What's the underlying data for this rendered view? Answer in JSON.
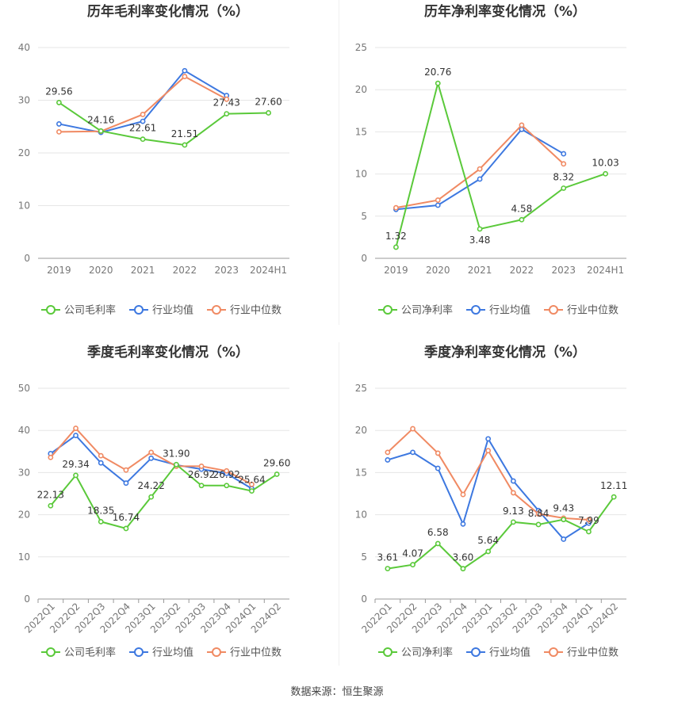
{
  "source": "数据来源：恒生聚源",
  "colors": {
    "company": "#5ac93a",
    "industry_avg": "#3d78e0",
    "industry_median": "#f08a63"
  },
  "chart_data": [
    {
      "type": "line",
      "title": "历年毛利率变化情况（%）",
      "categories": [
        "2019",
        "2020",
        "2021",
        "2022",
        "2023",
        "2024H1"
      ],
      "ylim": [
        0,
        40
      ],
      "yticks": [
        0,
        10,
        20,
        30,
        40
      ],
      "xrotate": false,
      "grid": true,
      "legend": "bottom",
      "series": [
        {
          "name": "公司毛利率",
          "key": "company",
          "values": [
            29.56,
            24.16,
            22.61,
            21.51,
            27.43,
            27.6
          ],
          "labels": [
            "29.56",
            "24.16",
            "22.61",
            "21.51",
            "27.43",
            "27.60"
          ]
        },
        {
          "name": "行业均值",
          "key": "industry_avg",
          "values": [
            25.5,
            23.9,
            26.0,
            35.6,
            30.9,
            null
          ]
        },
        {
          "name": "行业中位数",
          "key": "industry_median",
          "values": [
            24.0,
            24.1,
            27.3,
            34.5,
            30.2,
            null
          ]
        }
      ]
    },
    {
      "type": "line",
      "title": "历年净利率变化情况（%）",
      "categories": [
        "2019",
        "2020",
        "2021",
        "2022",
        "2023",
        "2024H1"
      ],
      "ylim": [
        0,
        25
      ],
      "yticks": [
        0,
        5,
        10,
        15,
        20,
        25
      ],
      "xrotate": false,
      "grid": true,
      "legend": "bottom",
      "series": [
        {
          "name": "公司净利率",
          "key": "company",
          "values": [
            1.32,
            20.76,
            3.48,
            4.58,
            8.32,
            10.03
          ],
          "labels": [
            "1.32",
            "20.76",
            "3.48",
            "4.58",
            "8.32",
            "10.03"
          ]
        },
        {
          "name": "行业均值",
          "key": "industry_avg",
          "values": [
            5.8,
            6.3,
            9.4,
            15.3,
            12.4,
            null
          ]
        },
        {
          "name": "行业中位数",
          "key": "industry_median",
          "values": [
            6.0,
            6.9,
            10.6,
            15.8,
            11.2,
            null
          ]
        }
      ]
    },
    {
      "type": "line",
      "title": "季度毛利率变化情况（%）",
      "categories": [
        "2022Q1",
        "2022Q2",
        "2022Q3",
        "2022Q4",
        "2023Q1",
        "2023Q2",
        "2023Q3",
        "2023Q4",
        "2024Q1",
        "2024Q2"
      ],
      "ylim": [
        0,
        50
      ],
      "yticks": [
        0,
        10,
        20,
        30,
        40,
        50
      ],
      "xrotate": true,
      "grid": true,
      "legend": "bottom",
      "series": [
        {
          "name": "公司毛利率",
          "key": "company",
          "values": [
            22.13,
            29.34,
            18.35,
            16.74,
            24.22,
            31.9,
            26.92,
            26.92,
            25.64,
            29.6
          ],
          "labels": [
            "22.13",
            "29.34",
            "18.35",
            "16.74",
            "24.22",
            "31.90",
            "26.92",
            "26.92",
            "25.64",
            "29.60"
          ]
        },
        {
          "name": "行业均值",
          "key": "industry_avg",
          "values": [
            34.5,
            38.8,
            32.3,
            27.5,
            33.4,
            31.8,
            30.8,
            29.8,
            26.2,
            null
          ]
        },
        {
          "name": "行业中位数",
          "key": "industry_median",
          "values": [
            33.6,
            40.5,
            34.0,
            30.6,
            34.8,
            31.5,
            31.5,
            30.4,
            27.2,
            null
          ]
        }
      ]
    },
    {
      "type": "line",
      "title": "季度净利率变化情况（%）",
      "categories": [
        "2022Q1",
        "2022Q2",
        "2022Q3",
        "2022Q4",
        "2023Q1",
        "2023Q2",
        "2023Q3",
        "2023Q4",
        "2024Q1",
        "2024Q2"
      ],
      "ylim": [
        0,
        25
      ],
      "yticks": [
        0,
        5,
        10,
        15,
        20,
        25
      ],
      "xrotate": true,
      "grid": true,
      "legend": "bottom",
      "series": [
        {
          "name": "公司净利率",
          "key": "company",
          "values": [
            3.61,
            4.07,
            6.58,
            3.6,
            5.64,
            9.13,
            8.84,
            9.43,
            7.99,
            12.11
          ],
          "labels": [
            "3.61",
            "4.07",
            "6.58",
            "3.60",
            "5.64",
            "9.13",
            "8.84",
            "9.43",
            "7.99",
            "12.11"
          ]
        },
        {
          "name": "行业均值",
          "key": "industry_avg",
          "values": [
            16.5,
            17.4,
            15.5,
            8.9,
            19.0,
            14.0,
            10.5,
            7.1,
            9.0,
            null
          ]
        },
        {
          "name": "行业中位数",
          "key": "industry_median",
          "values": [
            17.4,
            20.2,
            17.3,
            12.4,
            17.6,
            12.6,
            10.1,
            9.6,
            9.4,
            null
          ]
        }
      ]
    }
  ]
}
